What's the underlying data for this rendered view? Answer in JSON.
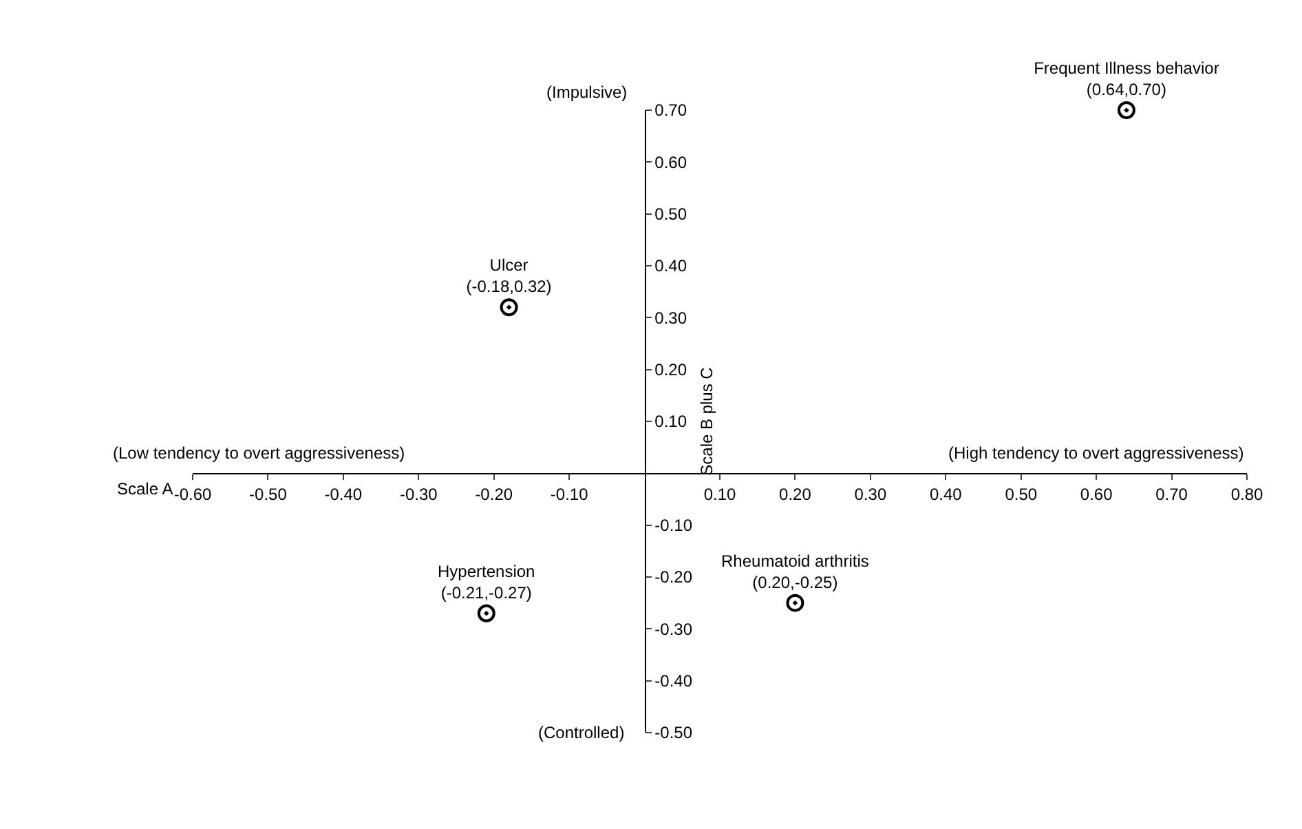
{
  "chart_data": {
    "type": "scatter",
    "xlabel": "Scale A",
    "ylabel": "Scale B plus C",
    "annotations": [
      "(Impulsive)",
      "(Controlled)",
      "(Low tendency to overt aggressiveness)",
      "(High tendency to overt aggressiveness)"
    ],
    "xlim": [
      -0.6,
      0.8
    ],
    "ylim": [
      -0.5,
      0.7
    ],
    "xticks": [
      {
        "value": -0.6,
        "label": "-0.60"
      },
      {
        "value": -0.5,
        "label": "-0.50"
      },
      {
        "value": -0.4,
        "label": "-0.40"
      },
      {
        "value": -0.3,
        "label": "-0.30"
      },
      {
        "value": -0.2,
        "label": "-0.20"
      },
      {
        "value": -0.1,
        "label": "-0.10"
      },
      {
        "value": 0.1,
        "label": "0.10"
      },
      {
        "value": 0.2,
        "label": "0.20"
      },
      {
        "value": 0.3,
        "label": "0.30"
      },
      {
        "value": 0.4,
        "label": "0.40"
      },
      {
        "value": 0.5,
        "label": "0.50"
      },
      {
        "value": 0.6,
        "label": "0.60"
      },
      {
        "value": 0.7,
        "label": "0.70"
      },
      {
        "value": 0.8,
        "label": "0.80"
      }
    ],
    "yticks": [
      {
        "value": -0.5,
        "label": "-0.50"
      },
      {
        "value": -0.4,
        "label": "-0.40"
      },
      {
        "value": -0.3,
        "label": "-0.30"
      },
      {
        "value": -0.2,
        "label": "-0.20"
      },
      {
        "value": -0.1,
        "label": "-0.10"
      },
      {
        "value": 0.1,
        "label": "0.10"
      },
      {
        "value": 0.2,
        "label": "0.20"
      },
      {
        "value": 0.3,
        "label": "0.30"
      },
      {
        "value": 0.4,
        "label": "0.40"
      },
      {
        "value": 0.5,
        "label": "0.50"
      },
      {
        "value": 0.6,
        "label": "0.60"
      },
      {
        "value": 0.7,
        "label": "0.70"
      }
    ],
    "marker": "circle",
    "grid": false,
    "legend": false,
    "series": [
      {
        "name": "Ulcer",
        "color": "#000000",
        "x": [
          -0.18
        ],
        "values": [
          0.32
        ],
        "value_labels": [
          "(-0.18,0.32)"
        ]
      },
      {
        "name": "Hypertension",
        "color": "#000000",
        "x": [
          -0.21
        ],
        "values": [
          -0.27
        ],
        "value_labels": [
          "(-0.21,-0.27)"
        ]
      },
      {
        "name": "Rheumatoid arthritis",
        "color": "#000000",
        "x": [
          0.2
        ],
        "values": [
          -0.25
        ],
        "value_labels": [
          "(0.20,-0.25)"
        ]
      },
      {
        "name": "Frequent Illness behavior",
        "color": "#000000",
        "x": [
          0.64
        ],
        "values": [
          0.7
        ],
        "value_labels": [
          "(0.64,0.70)"
        ]
      }
    ]
  }
}
